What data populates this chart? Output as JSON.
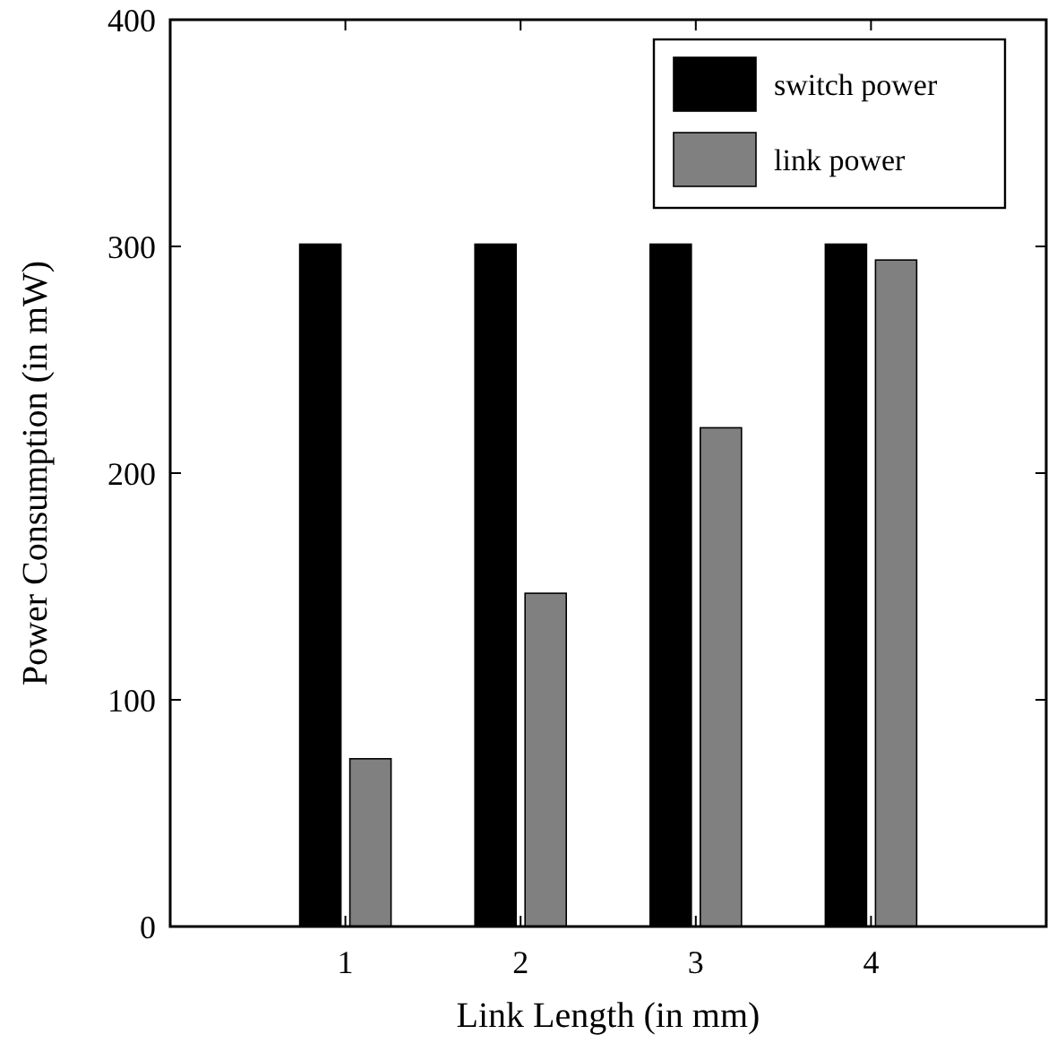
{
  "chart_data": {
    "type": "bar",
    "xlabel": "Link Length (in mm)",
    "ylabel": "Power Consumption (in mW)",
    "x": [
      1,
      2,
      3,
      4
    ],
    "xlim": [
      0,
      5
    ],
    "xticks": [
      1,
      2,
      3,
      4
    ],
    "ylim": [
      0,
      400
    ],
    "yticks": [
      0,
      100,
      200,
      300,
      400
    ],
    "legend": "top right",
    "series": [
      {
        "name": "switch power",
        "color": "#000000",
        "values": [
          301,
          301,
          301,
          301
        ]
      },
      {
        "name": "link power",
        "color": "#808080",
        "values": [
          74,
          147,
          220,
          294
        ]
      }
    ]
  }
}
